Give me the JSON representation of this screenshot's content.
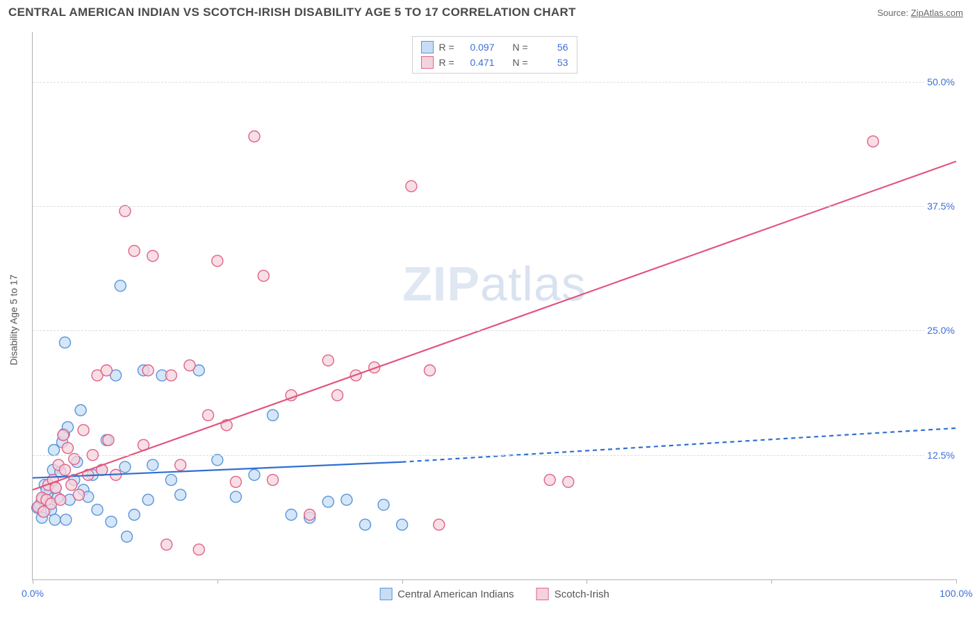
{
  "header": {
    "title": "CENTRAL AMERICAN INDIAN VS SCOTCH-IRISH DISABILITY AGE 5 TO 17 CORRELATION CHART",
    "source_label": "Source: ",
    "source_link_text": "ZipAtlas.com"
  },
  "chart": {
    "type": "scatter",
    "ylabel": "Disability Age 5 to 17",
    "xlim": [
      0,
      100
    ],
    "ylim": [
      0,
      55
    ],
    "background_color": "#ffffff",
    "grid_color": "#dcdcdc",
    "axis_color": "#b0b0b0",
    "tick_label_color": "#3b6fd6",
    "yticks": [
      {
        "v": 12.5,
        "label": "12.5%"
      },
      {
        "v": 25.0,
        "label": "25.0%"
      },
      {
        "v": 37.5,
        "label": "37.5%"
      },
      {
        "v": 50.0,
        "label": "50.0%"
      }
    ],
    "xticks": [
      {
        "v": 0,
        "label": "0.0%"
      },
      {
        "v": 20,
        "label": ""
      },
      {
        "v": 40,
        "label": ""
      },
      {
        "v": 60,
        "label": ""
      },
      {
        "v": 80,
        "label": ""
      },
      {
        "v": 100,
        "label": "100.0%"
      }
    ],
    "watermark": {
      "left": "ZIP",
      "right": "atlas"
    },
    "series_a": {
      "name": "Central American Indians",
      "fill_color": "#c6ddf5",
      "stroke_color": "#5a94d8",
      "marker_radius": 8,
      "r_value": "0.097",
      "n_value": "56",
      "trend": {
        "color": "#2f6fd1",
        "width": 2.2,
        "solid_from": [
          0,
          10.2
        ],
        "solid_to": [
          40,
          11.8
        ],
        "dashed_to": [
          100,
          15.2
        ]
      },
      "points": [
        [
          0.5,
          7.2
        ],
        [
          0.8,
          7.5
        ],
        [
          1.0,
          8.0
        ],
        [
          1.1,
          6.8
        ],
        [
          1.3,
          9.5
        ],
        [
          1.4,
          7.0
        ],
        [
          1.6,
          8.4
        ],
        [
          1.8,
          7.7
        ],
        [
          1.0,
          6.2
        ],
        [
          1.5,
          9.0
        ],
        [
          2.0,
          7.0
        ],
        [
          2.2,
          11.0
        ],
        [
          2.3,
          13.0
        ],
        [
          2.4,
          6.0
        ],
        [
          2.5,
          9.2
        ],
        [
          2.7,
          8.2
        ],
        [
          3.0,
          10.8
        ],
        [
          3.2,
          13.8
        ],
        [
          3.4,
          14.6
        ],
        [
          3.5,
          23.8
        ],
        [
          3.6,
          6.0
        ],
        [
          3.8,
          15.3
        ],
        [
          4.0,
          8.0
        ],
        [
          4.5,
          10.0
        ],
        [
          4.8,
          11.8
        ],
        [
          5.2,
          17.0
        ],
        [
          5.5,
          9.0
        ],
        [
          6.0,
          8.3
        ],
        [
          6.5,
          10.5
        ],
        [
          7.0,
          7.0
        ],
        [
          7.5,
          11.0
        ],
        [
          8.0,
          14.0
        ],
        [
          8.5,
          5.8
        ],
        [
          9.0,
          20.5
        ],
        [
          9.5,
          29.5
        ],
        [
          10.0,
          11.3
        ],
        [
          10.2,
          4.3
        ],
        [
          11.0,
          6.5
        ],
        [
          12.0,
          21.0
        ],
        [
          12.5,
          8.0
        ],
        [
          13.0,
          11.5
        ],
        [
          14.0,
          20.5
        ],
        [
          15.0,
          10.0
        ],
        [
          16.0,
          8.5
        ],
        [
          18.0,
          21.0
        ],
        [
          20.0,
          12.0
        ],
        [
          22.0,
          8.3
        ],
        [
          24.0,
          10.5
        ],
        [
          26.0,
          16.5
        ],
        [
          28.0,
          6.5
        ],
        [
          30.0,
          6.2
        ],
        [
          32.0,
          7.8
        ],
        [
          34.0,
          8.0
        ],
        [
          36.0,
          5.5
        ],
        [
          38.0,
          7.5
        ],
        [
          40.0,
          5.5
        ]
      ]
    },
    "series_b": {
      "name": "Scotch-Irish",
      "fill_color": "#f5d3dc",
      "stroke_color": "#e06287",
      "marker_radius": 8,
      "r_value": "0.471",
      "n_value": "53",
      "trend": {
        "color": "#e2557d",
        "width": 2.2,
        "solid_from": [
          0,
          9.0
        ],
        "solid_to": [
          100,
          42.0
        ]
      },
      "points": [
        [
          0.6,
          7.3
        ],
        [
          1.0,
          8.2
        ],
        [
          1.2,
          6.8
        ],
        [
          1.5,
          8.0
        ],
        [
          1.7,
          9.5
        ],
        [
          2.0,
          7.6
        ],
        [
          2.2,
          10.0
        ],
        [
          2.5,
          9.2
        ],
        [
          2.8,
          11.5
        ],
        [
          3.0,
          8.0
        ],
        [
          3.3,
          14.5
        ],
        [
          3.5,
          11.0
        ],
        [
          3.8,
          13.2
        ],
        [
          4.2,
          9.5
        ],
        [
          4.5,
          12.1
        ],
        [
          5.0,
          8.5
        ],
        [
          5.5,
          15.0
        ],
        [
          6.0,
          10.5
        ],
        [
          6.5,
          12.5
        ],
        [
          7.0,
          20.5
        ],
        [
          7.5,
          11.0
        ],
        [
          8.0,
          21.0
        ],
        [
          8.2,
          14.0
        ],
        [
          9.0,
          10.5
        ],
        [
          10.0,
          37.0
        ],
        [
          11.0,
          33.0
        ],
        [
          12.0,
          13.5
        ],
        [
          12.5,
          21.0
        ],
        [
          13.0,
          32.5
        ],
        [
          14.5,
          3.5
        ],
        [
          15.0,
          20.5
        ],
        [
          16.0,
          11.5
        ],
        [
          17.0,
          21.5
        ],
        [
          18.0,
          3.0
        ],
        [
          19.0,
          16.5
        ],
        [
          20.0,
          32.0
        ],
        [
          21.0,
          15.5
        ],
        [
          22.0,
          9.8
        ],
        [
          24.0,
          44.5
        ],
        [
          25.0,
          30.5
        ],
        [
          26.0,
          10.0
        ],
        [
          28.0,
          18.5
        ],
        [
          30.0,
          6.5
        ],
        [
          32.0,
          22.0
        ],
        [
          33.0,
          18.5
        ],
        [
          35.0,
          20.5
        ],
        [
          37.0,
          21.3
        ],
        [
          41.0,
          39.5
        ],
        [
          43.0,
          21.0
        ],
        [
          44.0,
          5.5
        ],
        [
          56.0,
          10.0
        ],
        [
          58.0,
          9.8
        ],
        [
          91.0,
          44.0
        ]
      ]
    },
    "legend_top": {
      "r_label": "R =",
      "n_label": "N ="
    },
    "legend_bottom": {
      "items": [
        {
          "key": "series_a"
        },
        {
          "key": "series_b"
        }
      ]
    }
  }
}
